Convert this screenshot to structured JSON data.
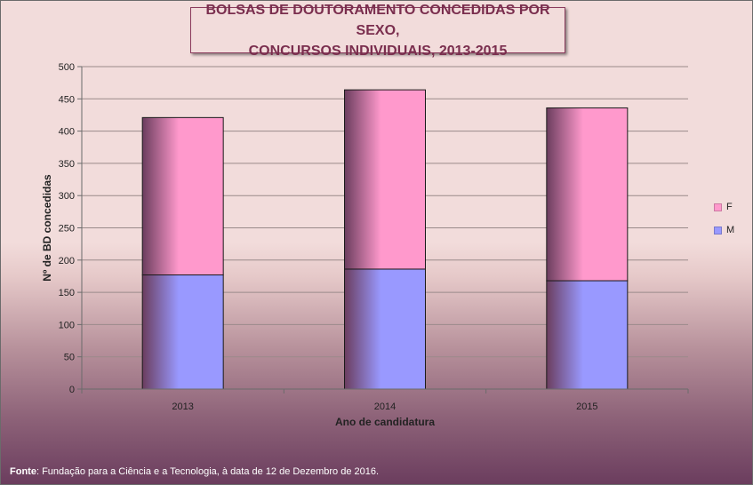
{
  "chart_data": {
    "type": "bar",
    "stacked": true,
    "title_lines": [
      "BOLSAS DE DOUTORAMENTO CONCEDIDAS POR SEXO,",
      "CONCURSOS INDIVIDUAIS, 2013-2015"
    ],
    "xlabel": "Ano de candidatura",
    "ylabel": "Nº de BD concedidas",
    "categories": [
      "2013",
      "2014",
      "2015"
    ],
    "series": [
      {
        "name": "M",
        "values": [
          177,
          186,
          168
        ],
        "color": "#9999ff"
      },
      {
        "name": "F",
        "values": [
          244,
          278,
          268
        ],
        "color": "#ff99cc"
      }
    ],
    "ylim": [
      0,
      500
    ],
    "yticks": [
      "0",
      "50",
      "100",
      "150",
      "200",
      "250",
      "300",
      "350",
      "400",
      "450",
      "500"
    ],
    "grid": true,
    "legend_position": "right"
  },
  "footer": {
    "label": "Fonte",
    "text": ": Fundação para a Ciência e a Tecnologia, à data de 12 de Dezembro de 2016."
  }
}
